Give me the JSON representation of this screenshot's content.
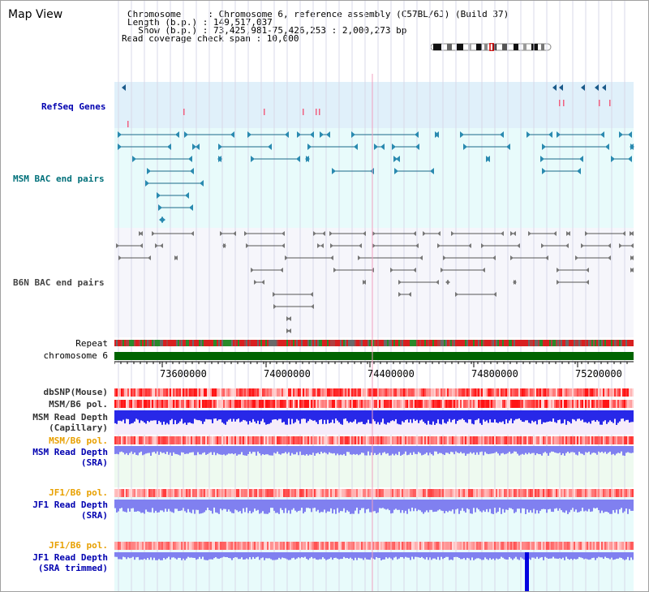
{
  "title": "Map View",
  "info": {
    "line1": "Chromosome     : Chromosome 6, reference assembly (C57BL/6J) (Build 37)",
    "line2": "Length (b.p.) : 149,517,037",
    "line3": "  Show (b.p.) : 73,425,981-75,426,253 : 2,000,273 bp",
    "line4": "Read coverage check span : 10,000"
  },
  "labels": {
    "refseq": "RefSeq Genes",
    "msm_bac": "MSM BAC end pairs",
    "b6n_bac": "B6N BAC end pairs",
    "repeat": "Repeat",
    "chromosome": "chromosome 6",
    "dbsnp": "dbSNP(Mouse)",
    "msm_b6_pol_1": "MSM/B6 pol.",
    "msm_read_depth_cap_1": "MSM Read Depth",
    "msm_read_depth_cap_2": "(Capillary)",
    "msm_b6_pol_2": "MSM/B6 pol.",
    "msm_read_depth_sra_1": "MSM Read Depth",
    "msm_read_depth_sra_2": "(SRA)",
    "jf1_b6_pol_1": "JF1/B6 pol.",
    "jf1_read_depth_sra_1": "JF1 Read Depth",
    "jf1_read_depth_sra_2": "(SRA)",
    "jf1_b6_pol_2": "JF1/B6 pol.",
    "jf1_read_depth_trim_1": "JF1 Read Depth",
    "jf1_read_depth_trim_2": "(SRA trimmed)"
  },
  "ticks": [
    "73600000",
    "74000000",
    "74400000",
    "74800000",
    "75200000"
  ],
  "colors": {
    "refseq_bg": "#e0f0fa",
    "msm_bac_bg": "#e8fbfb",
    "b6n_bg": "#f6f6fb",
    "chromosome": "#006400",
    "pol_red": "#ff2020",
    "depth_blue": "#2828e8",
    "depth_light": "#8080f0",
    "sra_bg": "#eefaf0",
    "jf1_bg": "#e8fbfb"
  }
}
